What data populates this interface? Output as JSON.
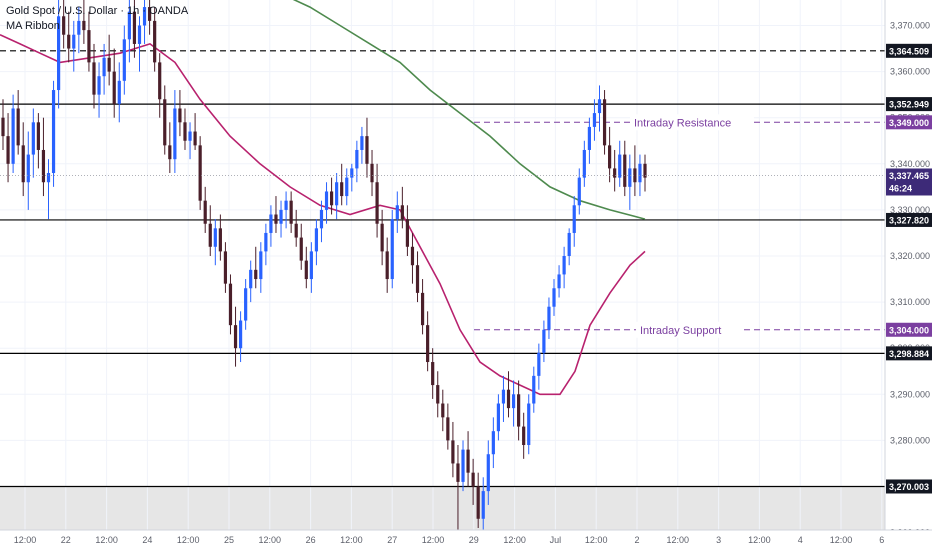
{
  "legend": {
    "symbol_line": "Gold Spot / U.S. Dollar · 1h · OANDA",
    "indicator": "MA Ribbon"
  },
  "chart_data": {
    "type": "candlestick",
    "ylim": [
      3255,
      3377
    ],
    "y_ticks": [
      {
        "value": 3260,
        "label": "3,260.000"
      },
      {
        "value": 3270,
        "label": "3,270.000"
      },
      {
        "value": 3280,
        "label": "3,280.000"
      },
      {
        "value": 3290,
        "label": "3,290.000"
      },
      {
        "value": 3300,
        "label": "3,300.000"
      },
      {
        "value": 3310,
        "label": "3,310.000"
      },
      {
        "value": 3320,
        "label": "3,320.000"
      },
      {
        "value": 3330,
        "label": "3,330.000"
      },
      {
        "value": 3340,
        "label": "3,340.000"
      },
      {
        "value": 3350,
        "label": "3,350.000"
      },
      {
        "value": 3360,
        "label": "3,360.000"
      },
      {
        "value": 3370,
        "label": "3,370.000"
      }
    ],
    "x_ticks": [
      "12:00",
      "22",
      "12:00",
      "24",
      "12:00",
      "25",
      "12:00",
      "26",
      "12:00",
      "27",
      "12:00",
      "29",
      "12:00",
      "Jul",
      "12:00",
      "2",
      "12:00",
      "3",
      "12:00",
      "4",
      "12:00",
      "6"
    ],
    "levels": [
      {
        "value": 3364.509,
        "label": "3,364.509",
        "style": "dashed"
      },
      {
        "value": 3352.949,
        "label": "3,352.949",
        "style": "solid"
      },
      {
        "value": 3327.82,
        "label": "3,327.820",
        "style": "solid"
      },
      {
        "value": 3298.884,
        "label": "3,298.884",
        "style": "solid"
      },
      {
        "value": 3270.003,
        "label": "3,270.003",
        "style": "solid"
      }
    ],
    "zones": [
      {
        "name": "Intraday Resistance",
        "value": 3349.0,
        "label": "3,349.000"
      },
      {
        "name": "Intraday Support",
        "value": 3304.0,
        "label": "3,304.000"
      }
    ],
    "current_price": {
      "label": "3,337.465",
      "countdown": "46:24",
      "value": 3337.465
    },
    "support_zone": {
      "from": 3255,
      "to": 3270.003
    },
    "candles": [
      [
        3350,
        3354,
        3343,
        3346
      ],
      [
        3346,
        3351,
        3336,
        3340
      ],
      [
        3340,
        3355,
        3338,
        3352
      ],
      [
        3352,
        3356,
        3342,
        3344
      ],
      [
        3344,
        3349,
        3333,
        3336
      ],
      [
        3336,
        3347,
        3330,
        3342
      ],
      [
        3342,
        3352,
        3337,
        3349
      ],
      [
        3349,
        3351,
        3339,
        3343
      ],
      [
        3343,
        3350,
        3333,
        3336
      ],
      [
        3336,
        3341,
        3328,
        3338
      ],
      [
        3338,
        3358,
        3335,
        3356
      ],
      [
        3356,
        3376,
        3352,
        3372
      ],
      [
        3372,
        3377,
        3365,
        3368
      ],
      [
        3368,
        3373,
        3362,
        3365
      ],
      [
        3365,
        3371,
        3360,
        3368
      ],
      [
        3368,
        3374,
        3364,
        3371
      ],
      [
        3371,
        3376,
        3366,
        3369
      ],
      [
        3369,
        3373,
        3360,
        3362
      ],
      [
        3362,
        3366,
        3352,
        3355
      ],
      [
        3355,
        3362,
        3350,
        3359
      ],
      [
        3359,
        3366,
        3355,
        3363
      ],
      [
        3363,
        3368,
        3357,
        3360
      ],
      [
        3360,
        3365,
        3350,
        3353
      ],
      [
        3353,
        3362,
        3349,
        3358
      ],
      [
        3358,
        3370,
        3355,
        3367
      ],
      [
        3367,
        3377,
        3362,
        3373
      ],
      [
        3373,
        3377,
        3363,
        3366
      ],
      [
        3366,
        3372,
        3360,
        3370
      ],
      [
        3370,
        3377,
        3366,
        3374
      ],
      [
        3374,
        3377,
        3368,
        3371
      ],
      [
        3371,
        3374,
        3360,
        3362
      ],
      [
        3362,
        3364,
        3350,
        3354
      ],
      [
        3354,
        3357,
        3342,
        3344
      ],
      [
        3344,
        3349,
        3338,
        3341
      ],
      [
        3341,
        3356,
        3338,
        3352
      ],
      [
        3352,
        3356,
        3346,
        3349
      ],
      [
        3349,
        3352,
        3343,
        3345
      ],
      [
        3345,
        3349,
        3341,
        3347
      ],
      [
        3347,
        3351,
        3343,
        3344
      ],
      [
        3344,
        3346,
        3330,
        3332
      ],
      [
        3332,
        3335,
        3325,
        3327
      ],
      [
        3327,
        3331,
        3320,
        3322
      ],
      [
        3322,
        3328,
        3318,
        3326
      ],
      [
        3326,
        3329,
        3319,
        3321
      ],
      [
        3321,
        3323,
        3312,
        3314
      ],
      [
        3314,
        3316,
        3303,
        3305
      ],
      [
        3305,
        3309,
        3296,
        3300
      ],
      [
        3300,
        3308,
        3297,
        3306
      ],
      [
        3306,
        3315,
        3304,
        3313
      ],
      [
        3313,
        3319,
        3310,
        3317
      ],
      [
        3317,
        3322,
        3313,
        3315
      ],
      [
        3315,
        3323,
        3312,
        3321
      ],
      [
        3321,
        3327,
        3318,
        3325
      ],
      [
        3325,
        3331,
        3322,
        3329
      ],
      [
        3329,
        3333,
        3325,
        3327
      ],
      [
        3327,
        3332,
        3324,
        3330
      ],
      [
        3330,
        3334,
        3326,
        3332
      ],
      [
        3332,
        3334,
        3325,
        3327
      ],
      [
        3327,
        3330,
        3322,
        3324
      ],
      [
        3324,
        3327,
        3317,
        3319
      ],
      [
        3319,
        3322,
        3313,
        3315
      ],
      [
        3315,
        3323,
        3312,
        3321
      ],
      [
        3321,
        3328,
        3318,
        3326
      ],
      [
        3326,
        3332,
        3323,
        3330
      ],
      [
        3330,
        3336,
        3327,
        3334
      ],
      [
        3334,
        3337,
        3329,
        3331
      ],
      [
        3331,
        3338,
        3328,
        3336
      ],
      [
        3336,
        3340,
        3331,
        3333
      ],
      [
        3333,
        3339,
        3331,
        3337
      ],
      [
        3337,
        3340,
        3334,
        3339
      ],
      [
        3339,
        3345,
        3336,
        3343
      ],
      [
        3343,
        3348,
        3340,
        3346
      ],
      [
        3346,
        3350,
        3337,
        3340
      ],
      [
        3340,
        3343,
        3333,
        3336
      ],
      [
        3336,
        3340,
        3324,
        3327
      ],
      [
        3327,
        3330,
        3318,
        3321
      ],
      [
        3321,
        3324,
        3312,
        3315
      ],
      [
        3315,
        3330,
        3313,
        3328
      ],
      [
        3328,
        3334,
        3325,
        3331
      ],
      [
        3331,
        3335,
        3326,
        3328
      ],
      [
        3328,
        3331,
        3320,
        3322
      ],
      [
        3322,
        3325,
        3314,
        3318
      ],
      [
        3318,
        3321,
        3310,
        3312
      ],
      [
        3312,
        3315,
        3303,
        3305
      ],
      [
        3305,
        3308,
        3295,
        3297
      ],
      [
        3297,
        3300,
        3289,
        3292
      ],
      [
        3292,
        3295,
        3285,
        3288
      ],
      [
        3288,
        3291,
        3282,
        3285
      ],
      [
        3285,
        3288,
        3278,
        3280
      ],
      [
        3280,
        3284,
        3272,
        3275
      ],
      [
        3275,
        3279,
        3255,
        3271
      ],
      [
        3271,
        3280,
        3269,
        3278
      ],
      [
        3278,
        3282,
        3270,
        3273
      ],
      [
        3273,
        3276,
        3266,
        3270
      ],
      [
        3270,
        3273,
        3261,
        3263
      ],
      [
        3263,
        3272,
        3258,
        3269
      ],
      [
        3269,
        3280,
        3266,
        3277
      ],
      [
        3277,
        3285,
        3274,
        3282
      ],
      [
        3282,
        3290,
        3280,
        3288
      ],
      [
        3288,
        3294,
        3284,
        3291
      ],
      [
        3291,
        3295,
        3285,
        3287
      ],
      [
        3287,
        3293,
        3283,
        3290
      ],
      [
        3290,
        3293,
        3280,
        3283
      ],
      [
        3283,
        3286,
        3276,
        3279
      ],
      [
        3279,
        3290,
        3277,
        3288
      ],
      [
        3288,
        3296,
        3286,
        3294
      ],
      [
        3294,
        3301,
        3291,
        3299
      ],
      [
        3299,
        3306,
        3297,
        3304
      ],
      [
        3304,
        3311,
        3302,
        3309
      ],
      [
        3309,
        3315,
        3307,
        3313
      ],
      [
        3313,
        3318,
        3311,
        3316
      ],
      [
        3316,
        3322,
        3313,
        3320
      ],
      [
        3320,
        3326,
        3318,
        3325
      ],
      [
        3325,
        3333,
        3322,
        3331
      ],
      [
        3331,
        3339,
        3329,
        3337
      ],
      [
        3337,
        3345,
        3335,
        3343
      ],
      [
        3343,
        3350,
        3340,
        3348
      ],
      [
        3348,
        3354,
        3345,
        3351
      ],
      [
        3351,
        3357,
        3347,
        3354
      ],
      [
        3354,
        3356,
        3342,
        3344
      ],
      [
        3344,
        3348,
        3336,
        3339
      ],
      [
        3339,
        3343,
        3334,
        3337
      ],
      [
        3337,
        3345,
        3335,
        3342
      ],
      [
        3342,
        3345,
        3333,
        3335
      ],
      [
        3335,
        3342,
        3330,
        3339
      ],
      [
        3339,
        3344,
        3333,
        3336
      ],
      [
        3336,
        3342,
        3333,
        3340
      ],
      [
        3340,
        3342,
        3334,
        3337
      ]
    ],
    "ma_fast": [
      [
        0,
        3368
      ],
      [
        20,
        3366
      ],
      [
        40,
        3364
      ],
      [
        60,
        3362
      ],
      [
        90,
        3363
      ],
      [
        120,
        3364
      ],
      [
        150,
        3366
      ],
      [
        175,
        3362
      ],
      [
        200,
        3354
      ],
      [
        230,
        3346
      ],
      [
        260,
        3340
      ],
      [
        290,
        3335
      ],
      [
        320,
        3331
      ],
      [
        350,
        3329
      ],
      [
        380,
        3331
      ],
      [
        400,
        3330
      ],
      [
        420,
        3322
      ],
      [
        440,
        3314
      ],
      [
        460,
        3304
      ],
      [
        480,
        3297
      ],
      [
        500,
        3294
      ],
      [
        520,
        3292
      ],
      [
        540,
        3290
      ],
      [
        560,
        3290
      ],
      [
        575,
        3295
      ],
      [
        590,
        3305
      ],
      [
        610,
        3312
      ],
      [
        630,
        3318
      ],
      [
        645,
        3321
      ]
    ],
    "ma_slow": [
      [
        280,
        3377
      ],
      [
        310,
        3374
      ],
      [
        340,
        3370
      ],
      [
        370,
        3366
      ],
      [
        400,
        3362
      ],
      [
        430,
        3356
      ],
      [
        460,
        3351
      ],
      [
        490,
        3346
      ],
      [
        520,
        3340
      ],
      [
        550,
        3335
      ],
      [
        580,
        3332
      ],
      [
        610,
        3330
      ],
      [
        645,
        3328
      ]
    ]
  }
}
